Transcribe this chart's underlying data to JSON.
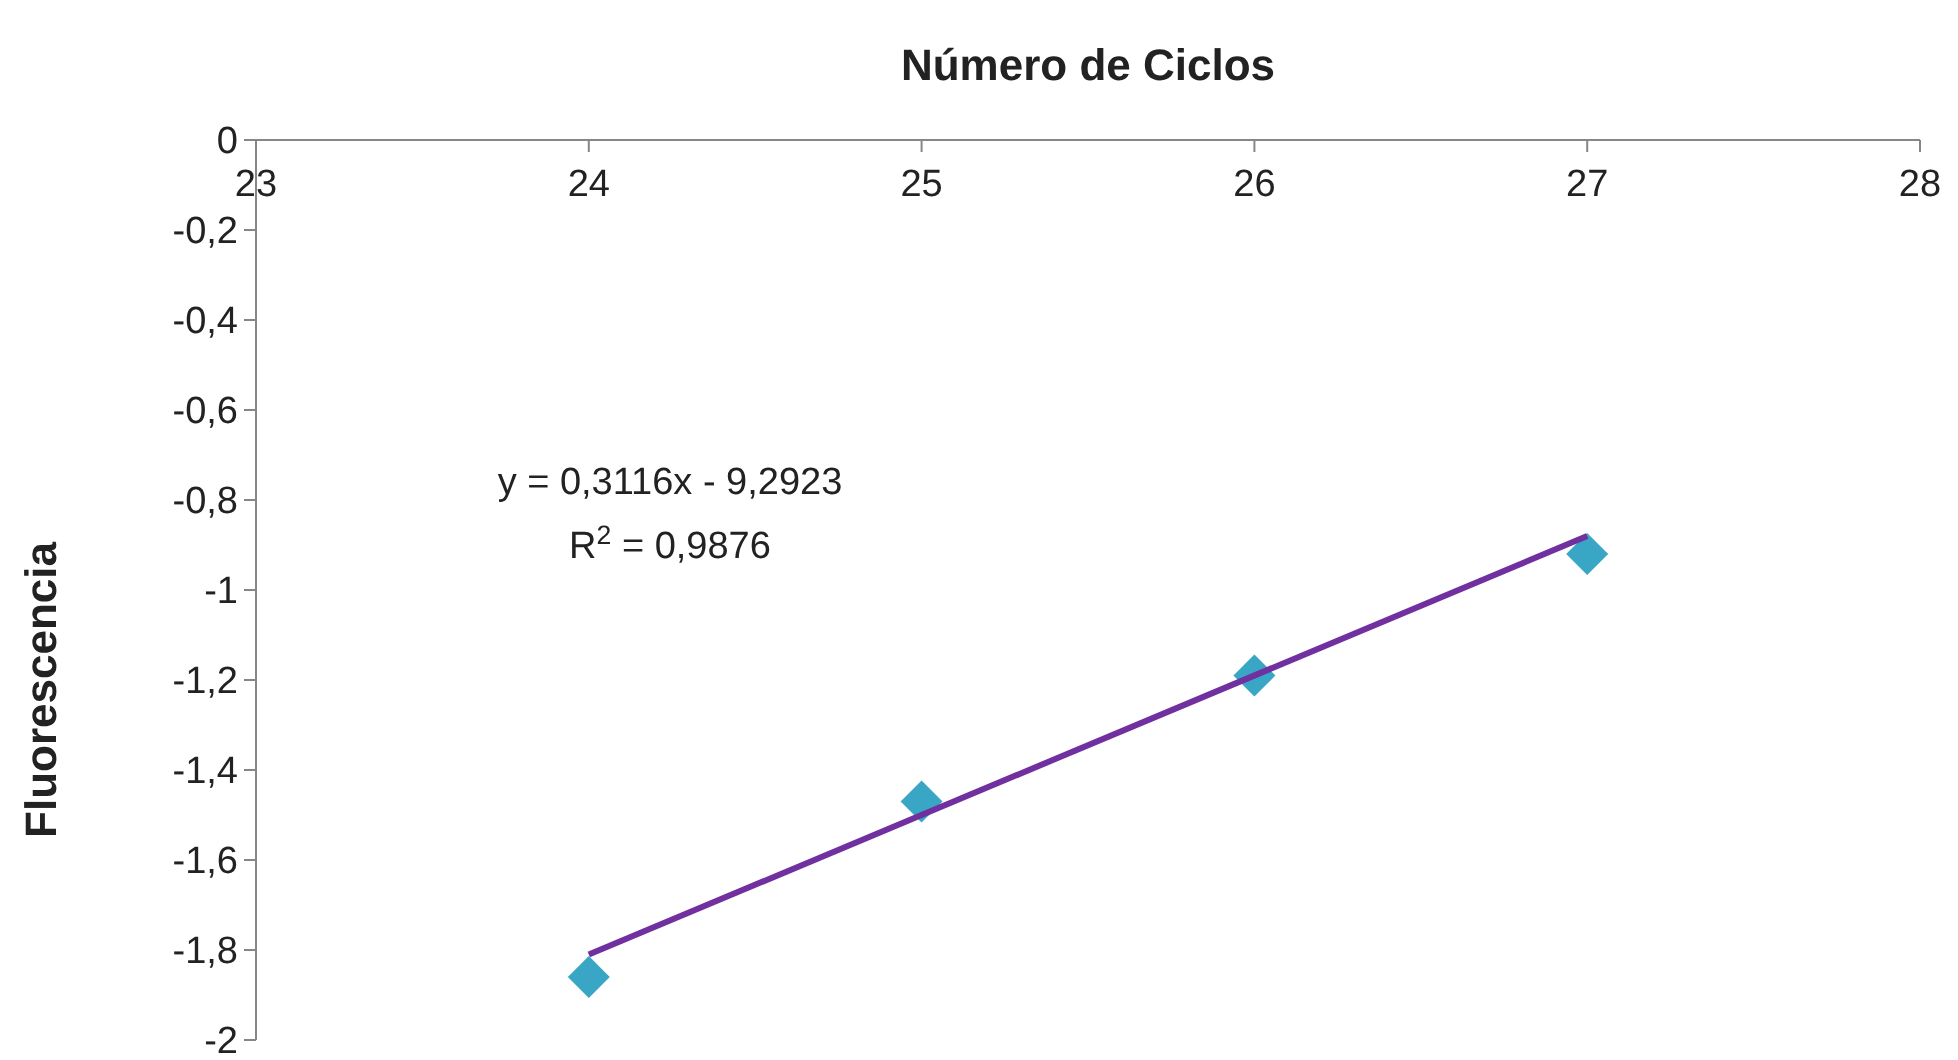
{
  "chart_data": {
    "type": "scatter",
    "title": "Número de Ciclos",
    "ylabel": "Fluorescencia",
    "xlim": [
      23,
      28
    ],
    "xticks": [
      23,
      24,
      25,
      26,
      27,
      28
    ],
    "ylim": [
      -2,
      0
    ],
    "yticks": [
      {
        "value": -2,
        "label": "-2"
      },
      {
        "value": -1.8,
        "label": "-1,8"
      },
      {
        "value": -1.6,
        "label": "-1,6"
      },
      {
        "value": -1.4,
        "label": "-1,4"
      },
      {
        "value": -1.2,
        "label": "-1,2"
      },
      {
        "value": -1,
        "label": "-1"
      },
      {
        "value": -0.8,
        "label": "-0,8"
      },
      {
        "value": -0.6,
        "label": "-0,6"
      },
      {
        "value": -0.4,
        "label": "-0,4"
      },
      {
        "value": -0.2,
        "label": "-0,2"
      },
      0
    ],
    "grid": false,
    "series": [
      {
        "marker": "diamond",
        "color": "#3aa6c5",
        "x": [
          24,
          25,
          26,
          27
        ],
        "values": [
          -1.86,
          -1.47,
          -1.19,
          -0.92
        ]
      },
      {
        "type": "line",
        "color": "#7030a0",
        "x": [
          24,
          27
        ],
        "values": [
          -1.81,
          -0.88
        ]
      }
    ],
    "annotations": [
      "y = 0,3116x - 9,2923",
      "R$^{2}$ = 0,9876"
    ]
  }
}
